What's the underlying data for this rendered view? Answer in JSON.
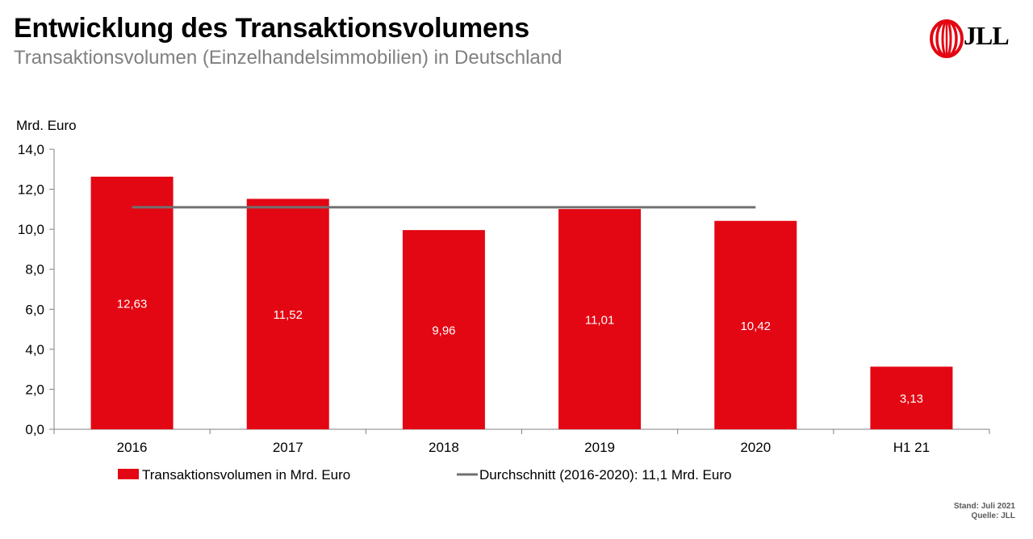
{
  "header": {
    "title": "Entwicklung des Transaktionsvolumens",
    "subtitle": "Transaktionsvolumen (Einzelhandelsimmobilien) in Deutschland",
    "logo_text": "JLL"
  },
  "footer": {
    "stand": "Stand: Juli 2021",
    "quelle": "Quelle: JLL"
  },
  "colors": {
    "bar": "#E30613",
    "average_line": "#707070",
    "axis": "#808080",
    "logo_red": "#E30613"
  },
  "chart_data": {
    "type": "bar",
    "title": "Entwicklung des Transaktionsvolumens",
    "subtitle": "Transaktionsvolumen (Einzelhandelsimmobilien) in Deutschland",
    "ylabel": "Mrd. Euro",
    "xlabel": "",
    "categories": [
      "2016",
      "2017",
      "2018",
      "2019",
      "2020",
      "H1 21"
    ],
    "series": [
      {
        "name": "Transaktionsvolumen in Mrd. Euro",
        "values": [
          12.63,
          11.52,
          9.96,
          11.01,
          10.42,
          3.13
        ],
        "data_labels": [
          "12,63",
          "11,52",
          "9,96",
          "11,01",
          "10,42",
          "3,13"
        ]
      }
    ],
    "average_line": {
      "name": "Durchschnitt (2016-2020): 11,1 Mrd. Euro",
      "value": 11.1,
      "from_category": "2016",
      "to_category": "2020"
    },
    "ylim": [
      0,
      14
    ],
    "yticks": [
      0,
      2,
      4,
      6,
      8,
      10,
      12,
      14
    ],
    "ytick_labels": [
      "0,0",
      "2,0",
      "4,0",
      "6,0",
      "8,0",
      "10,0",
      "12,0",
      "14,0"
    ],
    "grid": false,
    "legend_position": "bottom"
  }
}
